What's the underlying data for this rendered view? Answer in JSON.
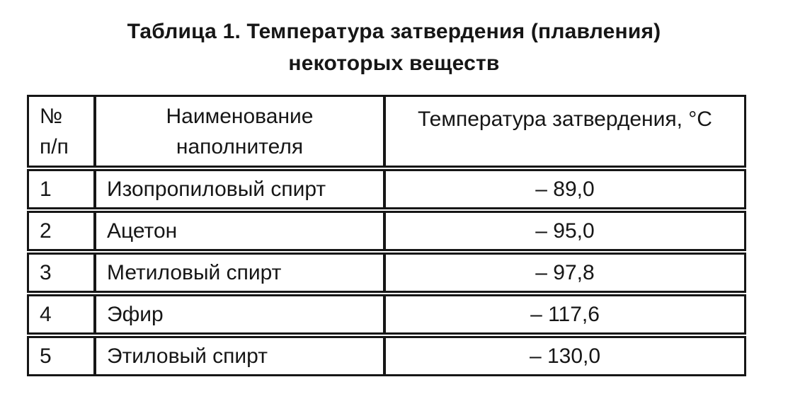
{
  "title": {
    "line1": "Таблица 1. Температура затвердения (плавления)",
    "line2": "некоторых веществ"
  },
  "header": {
    "col1": [
      "№",
      "п/п"
    ],
    "col2": [
      "Наименование",
      "наполнителя"
    ],
    "col3": "Температура затвердения, °С"
  },
  "chart_data": {
    "type": "table",
    "title": "Таблица 1. Температура затвердения (плавления) некоторых веществ",
    "columns": [
      "№ п/п",
      "Наименование наполнителя",
      "Температура затвердения, °С"
    ],
    "rows": [
      [
        "1",
        "Изопропиловый спирт",
        "– 89,0"
      ],
      [
        "2",
        "Ацетон",
        "– 95,0"
      ],
      [
        "3",
        "Метиловый спирт",
        "– 97,8"
      ],
      [
        "4",
        "Эфир",
        "– 117,6"
      ],
      [
        "5",
        "Этиловый спирт",
        "– 130,0"
      ]
    ],
    "values_celsius": [
      -89.0,
      -95.0,
      -97.8,
      -117.6,
      -130.0
    ],
    "unit": "°С"
  },
  "colors": {
    "background": "#ffffff",
    "text": "#161616",
    "border": "#161616"
  }
}
